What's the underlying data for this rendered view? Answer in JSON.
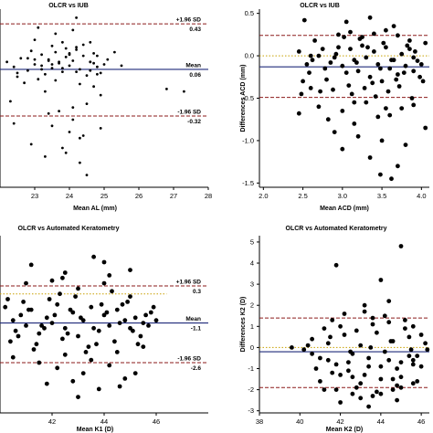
{
  "chart_data": [
    {
      "type": "scatter",
      "title": "OLCR vs IUB",
      "xlabel": "Mean AL (mm)",
      "ylabel": "",
      "xticks": [
        23,
        24,
        25,
        26,
        27,
        28
      ],
      "yticks": [],
      "xlim": [
        22.0,
        28.0
      ],
      "ylim": [
        -0.9,
        0.55
      ],
      "grid": false,
      "lines": [
        {
          "value": 0.43,
          "label": "+1.96 SD",
          "value_text": "0.43",
          "style": "sd"
        },
        {
          "value": 0.06,
          "label": "Mean",
          "value_text": "0.06",
          "style": "mean"
        },
        {
          "value": -0.32,
          "label": "-1.96 SD",
          "value_text": "-0.32",
          "style": "sd"
        }
      ],
      "zero_line": false,
      "x": [
        22.2,
        22.4,
        22.6,
        22.8,
        23.0,
        23.2,
        23.3,
        23.4,
        23.5,
        23.6,
        23.7,
        23.8,
        23.9,
        24.0,
        24.1,
        24.2,
        24.3,
        24.4,
        24.5,
        24.6,
        24.7,
        24.8,
        24.9,
        25.0,
        22.5,
        22.9,
        23.1,
        23.5,
        23.8,
        24.2,
        24.6,
        25.1,
        22.7,
        23.2,
        23.6,
        24.0,
        24.4,
        24.8,
        23.0,
        23.4,
        23.9,
        24.3,
        24.7,
        22.3,
        23.3,
        23.7,
        24.1,
        24.5,
        24.9,
        23.5,
        24.0,
        24.3,
        22.4,
        22.9,
        23.4,
        23.9,
        24.4,
        23.1,
        23.6,
        24.1,
        24.6,
        25.3,
        24.2,
        23.8,
        24.7,
        22.8,
        23.2,
        23.7,
        24.2,
        24.8,
        25.5,
        26.8,
        27.3,
        22.5,
        23.0,
        23.5,
        24.0,
        24.6,
        24.3,
        24.5,
        23.8,
        23.3,
        24.9,
        24.1
      ],
      "y": [
        0.12,
        0.08,
        0.15,
        0.05,
        0.1,
        0.18,
        0.02,
        0.14,
        0.07,
        0.2,
        0.11,
        0.04,
        0.16,
        0.09,
        0.13,
        0.22,
        0.06,
        0.17,
        0.01,
        0.12,
        0.19,
        0.08,
        0.03,
        0.1,
        0.0,
        0.21,
        -0.02,
        0.25,
        0.28,
        0.24,
        0.05,
        0.14,
        -0.05,
        0.09,
        -0.03,
        0.18,
        0.26,
        0.02,
        0.3,
        0.13,
        0.23,
        -0.06,
        0.11,
        -0.2,
        -0.12,
        -0.28,
        -0.35,
        -0.22,
        -0.15,
        -0.4,
        -0.45,
        -0.5,
        -0.38,
        -0.55,
        -0.3,
        -0.62,
        -0.48,
        0.4,
        0.35,
        0.38,
        0.28,
        0.2,
        0.48,
        0.07,
        -0.08,
        0.15,
        0.06,
        0.12,
        0.04,
        0.17,
        0.09,
        -0.1,
        -0.12,
        0.03,
        0.14,
        0.1,
        0.19,
        0.12,
        -0.7,
        -0.8,
        -0.58,
        -0.65,
        -0.42,
        -0.25
      ]
    },
    {
      "type": "scatter",
      "title": "OLCR vs IUB",
      "xlabel": "Mean ACD (mm)",
      "ylabel": "Differences ACD (mm)",
      "xticks": [
        2.0,
        2.5,
        3.0,
        3.5,
        4.0
      ],
      "yticks": [
        0.5,
        0.0,
        -0.5,
        -1.0,
        -1.5
      ],
      "ytick_labels": [
        "0.5",
        "0.0",
        "-0.5",
        "-1.0",
        "-1.5"
      ],
      "xtick_labels": [
        "2.0",
        "2.5",
        "3.0",
        "3.5",
        "4.0"
      ],
      "xlim": [
        1.95,
        4.1
      ],
      "ylim": [
        -1.55,
        0.55
      ],
      "grid": false,
      "lines": [
        {
          "value": 0.24,
          "style": "sd"
        },
        {
          "value": -0.13,
          "style": "mean"
        },
        {
          "value": -0.49,
          "style": "sd"
        }
      ],
      "zero_line": true,
      "x": [
        2.45,
        2.55,
        2.62,
        2.7,
        2.78,
        2.85,
        2.92,
        3.0,
        3.05,
        3.1,
        3.15,
        3.2,
        3.25,
        3.3,
        3.35,
        3.4,
        3.45,
        3.5,
        3.55,
        3.6,
        3.65,
        3.7,
        3.75,
        3.8,
        3.85,
        3.9,
        3.95,
        4.0,
        4.05,
        2.5,
        2.65,
        2.8,
        2.95,
        3.08,
        3.22,
        3.38,
        3.52,
        3.68,
        3.82,
        3.98,
        2.58,
        2.75,
        2.9,
        3.02,
        3.18,
        3.32,
        3.48,
        3.62,
        3.78,
        3.92,
        2.48,
        2.6,
        2.72,
        2.88,
        3.12,
        3.28,
        3.42,
        3.58,
        3.72,
        3.88,
        4.02,
        2.95,
        3.1,
        3.25,
        3.4,
        3.55,
        3.7,
        3.85,
        2.7,
        3.0,
        3.3,
        3.6,
        3.9,
        2.82,
        3.15,
        3.45,
        3.75,
        2.52,
        3.05,
        3.35,
        3.65,
        2.45,
        2.9,
        3.2,
        3.5,
        3.8,
        4.05,
        3.0,
        3.35,
        3.7,
        3.48,
        3.62,
        3.15,
        3.55,
        2.6,
        3.9
      ],
      "y": [
        0.05,
        -0.1,
        -0.05,
        0.0,
        -0.15,
        -0.08,
        0.02,
        -0.12,
        -0.2,
        0.08,
        -0.05,
        -0.18,
        0.12,
        -0.02,
        -0.25,
        0.05,
        -0.1,
        -0.3,
        0.1,
        -0.15,
        -0.05,
        -0.22,
        0.02,
        -0.12,
        0.08,
        -0.18,
        -0.06,
        -0.1,
        0.15,
        -0.3,
        0.18,
        -0.28,
        0.1,
        -0.35,
        0.2,
        -0.32,
        0.15,
        -0.28,
        0.12,
        -0.25,
        -0.2,
        0.08,
        -0.02,
        0.22,
        -0.08,
        0.1,
        -0.15,
        -0.05,
        -0.2,
        0.05,
        -0.45,
        -0.38,
        -0.42,
        -0.4,
        -0.45,
        -0.38,
        -0.48,
        -0.42,
        -0.36,
        -0.5,
        -0.3,
        0.25,
        0.28,
        0.22,
        0.26,
        0.3,
        0.24,
        0.18,
        -0.6,
        -0.65,
        -0.55,
        -0.7,
        -0.58,
        -0.75,
        -0.8,
        -0.72,
        -0.62,
        0.42,
        0.4,
        0.45,
        0.35,
        -0.68,
        -0.9,
        -0.95,
        -1.0,
        -1.05,
        -0.85,
        -1.1,
        -1.2,
        -1.3,
        -1.4,
        -1.45,
        -0.55,
        -0.62,
        0.0,
        -0.02
      ]
    },
    {
      "type": "scatter",
      "title": "OLCR vs Automated Keratometry",
      "xlabel": "Mean K1 (D)",
      "ylabel": "",
      "xticks": [
        42,
        44,
        46
      ],
      "yticks": [],
      "xlim": [
        40.0,
        48.0
      ],
      "ylim": [
        -4.5,
        2.2
      ],
      "grid": false,
      "lines": [
        {
          "value": 0.3,
          "label": "+1.96 SD",
          "value_text": "0.3",
          "style": "sd"
        },
        {
          "value": -1.1,
          "label": "Mean",
          "value_text": "-1.1",
          "style": "mean"
        },
        {
          "value": -2.6,
          "label": "-1.96 SD",
          "value_text": "-2.6",
          "style": "sd"
        }
      ],
      "zero_line": true,
      "zero_line_extent": [
        40.0,
        46.4
      ],
      "x": [
        40.2,
        40.5,
        40.8,
        41.0,
        41.2,
        41.5,
        41.8,
        42.0,
        42.2,
        42.5,
        42.8,
        43.0,
        43.2,
        43.5,
        43.8,
        44.0,
        44.2,
        44.5,
        44.8,
        45.0,
        45.2,
        45.5,
        45.8,
        46.0,
        40.4,
        40.9,
        41.4,
        41.9,
        42.4,
        42.9,
        43.4,
        43.9,
        44.4,
        44.9,
        45.4,
        45.9,
        40.6,
        41.1,
        41.6,
        42.1,
        42.6,
        43.1,
        43.6,
        44.1,
        44.6,
        45.1,
        45.6,
        40.3,
        41.3,
        42.3,
        43.3,
        44.3,
        45.3,
        40.7,
        41.7,
        42.7,
        43.7,
        44.7,
        45.7,
        41.0,
        42.0,
        43.0,
        44.0,
        45.0,
        40.5,
        41.5,
        42.5,
        43.5,
        44.5,
        45.5,
        42.2,
        43.2,
        44.2,
        42.8,
        43.8,
        44.8,
        41.8,
        43.0,
        44.6,
        45.2,
        42.5,
        43.6,
        44.0,
        41.2,
        42.4,
        44.2,
        45.0
      ],
      "y": [
        -0.5,
        -1.0,
        -0.8,
        -1.2,
        -0.6,
        -1.5,
        -0.9,
        -1.1,
        -0.4,
        -1.3,
        -0.7,
        -1.6,
        -1.0,
        -0.5,
        -1.4,
        -0.8,
        -1.2,
        -0.6,
        -1.0,
        -1.3,
        -0.9,
        -1.1,
        -0.7,
        -1.0,
        -1.8,
        -0.3,
        -1.9,
        -0.2,
        -1.7,
        -0.1,
        -2.0,
        -0.4,
        -1.8,
        -0.3,
        -1.6,
        -0.5,
        -1.4,
        -0.6,
        -1.2,
        -0.8,
        -1.5,
        -0.9,
        -1.3,
        -0.7,
        -1.1,
        -1.4,
        -0.8,
        -0.2,
        -2.1,
        0.0,
        -2.2,
        0.1,
        -1.9,
        -1.6,
        -1.3,
        -0.6,
        -1.9,
        -0.4,
        -1.2,
        0.4,
        0.5,
        0.2,
        0.4,
        -0.1,
        -2.4,
        -2.6,
        -2.3,
        -2.5,
        -2.2,
        -2.0,
        -2.8,
        -3.0,
        -2.7,
        -3.3,
        -3.6,
        -3.2,
        -3.4,
        -3.9,
        -3.5,
        -3.0,
        0.8,
        1.4,
        1.2,
        1.1,
        0.6,
        0.7,
        0.9
      ]
    },
    {
      "type": "scatter",
      "title": "OLCR vs Automated Keratometry",
      "xlabel": "Mean K2 (D)",
      "ylabel": "Differences K2 (D)",
      "xticks": [
        38,
        40,
        42,
        44,
        46
      ],
      "yticks": [
        5,
        4,
        3,
        2,
        1,
        0,
        -1,
        -2,
        -3
      ],
      "xlim": [
        38.0,
        46.4
      ],
      "ylim": [
        -3.1,
        5.3
      ],
      "grid": false,
      "lines": [
        {
          "value": 1.4,
          "style": "sd"
        },
        {
          "value": -0.2,
          "style": "mean"
        },
        {
          "value": -1.9,
          "style": "sd"
        }
      ],
      "zero_line": true,
      "x": [
        40.2,
        40.6,
        41.0,
        41.4,
        41.8,
        42.2,
        42.6,
        43.0,
        43.4,
        43.8,
        44.2,
        44.6,
        45.0,
        45.4,
        45.8,
        46.2,
        40.8,
        41.2,
        41.6,
        42.0,
        42.4,
        42.8,
        43.2,
        43.6,
        44.0,
        44.4,
        44.8,
        45.2,
        45.6,
        46.0,
        40.4,
        41.4,
        42.4,
        43.4,
        44.4,
        45.4,
        46.3,
        40.6,
        41.6,
        42.6,
        43.6,
        44.6,
        45.6,
        41.0,
        42.0,
        43.0,
        44.0,
        45.0,
        46.0,
        41.8,
        42.8,
        43.8,
        44.8,
        45.8,
        42.2,
        43.2,
        44.2,
        45.2,
        42.6,
        43.6,
        44.6,
        45.6,
        43.0,
        44.0,
        45.0,
        41.5,
        42.5,
        43.5,
        44.5,
        45.5,
        39.6,
        41.8,
        43.2,
        44.4,
        45.0,
        42.0,
        43.4,
        44.8,
        41.2,
        44.0,
        45.6
      ],
      "y": [
        -0.1,
        0.4,
        -0.5,
        0.2,
        -0.8,
        0.6,
        -0.3,
        0.1,
        -0.9,
        0.7,
        -0.2,
        0.3,
        -0.7,
        0.5,
        -0.4,
        0.2,
        -1.0,
        0.9,
        -1.2,
        1.0,
        -1.1,
        0.8,
        -1.3,
        1.1,
        -0.9,
        1.2,
        -1.0,
        0.9,
        -0.8,
        0.6,
        0.1,
        -0.6,
        -0.7,
        -0.5,
        -0.6,
        -0.4,
        -0.1,
        -0.3,
        1.3,
        -1.4,
        1.4,
        -1.5,
        1.0,
        -1.6,
        -1.3,
        -1.7,
        -1.5,
        -1.4,
        -0.9,
        -2.0,
        -1.9,
        -2.1,
        -1.8,
        -1.6,
        1.6,
        1.7,
        1.5,
        1.3,
        -2.2,
        -2.3,
        -2.0,
        -1.7,
        -2.4,
        -2.2,
        -1.9,
        0.5,
        -0.2,
        0.0,
        0.3,
        -0.1,
        0.0,
        3.9,
        2.0,
        2.2,
        4.8,
        -2.6,
        -2.8,
        -2.5,
        -2.0,
        3.2,
        -0.6
      ]
    }
  ],
  "colors": {
    "axis": "#000000",
    "point": "#000000",
    "sd_line": "#8b1a1a",
    "mean_line": "#1f2a7a",
    "zero_line": "#c8a000"
  }
}
